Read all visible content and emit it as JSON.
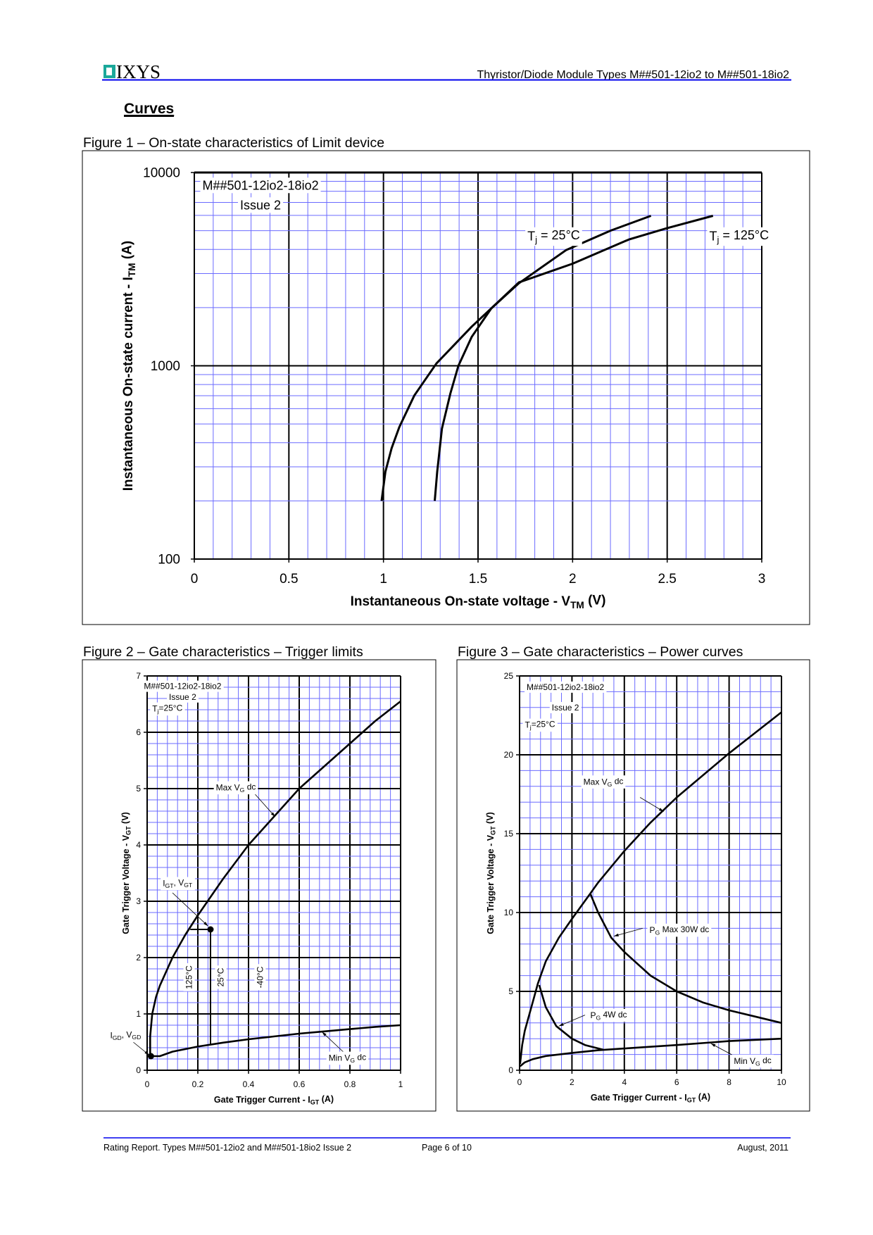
{
  "header": {
    "logo_text": "IXYS",
    "doc_title": "Thyristor/Diode Module Types M##501-12io2 to M##501-18io2"
  },
  "section_title": "Curves",
  "colors": {
    "rule": "#0000ee",
    "grid_minor": "#6b6bff",
    "grid_major": "#000000",
    "logo": "#1aa89a"
  },
  "chart_data": [
    {
      "type": "line",
      "title": "Figure 1 – On-state characteristics of Limit device",
      "xlabel": [
        {
          "t": "Instantaneous On-state voltage - V"
        },
        {
          "t": "TM",
          "sub": true
        },
        {
          "t": " (V)"
        }
      ],
      "ylabel": [
        {
          "t": "Instantaneous On-state current - I"
        },
        {
          "t": "TM",
          "sub": true
        },
        {
          "t": " (A)"
        }
      ],
      "xlim": [
        0,
        3
      ],
      "ylim": [
        100,
        10000
      ],
      "yscale": "log",
      "xticks": [
        "0",
        "0.5",
        "1",
        "1.5",
        "2",
        "2.5",
        "3"
      ],
      "yticks": [
        "100",
        "1000",
        "10000"
      ],
      "x_major": 0.5,
      "x_minor": 0.1,
      "grid": true,
      "annotations": [
        [
          {
            "t": "M##501-12io2-18io2"
          }
        ],
        [
          {
            "t": "Issue 2"
          }
        ],
        [
          {
            "t": "T"
          },
          {
            "t": "j",
            "sub": true
          },
          {
            "t": " = 25°C"
          }
        ],
        [
          {
            "t": "T"
          },
          {
            "t": "j",
            "sub": true
          },
          {
            "t": " = 125°C"
          }
        ]
      ],
      "series": [
        {
          "name": "Tj = 25°C",
          "x": [
            0.99,
            1.01,
            1.043,
            1.084,
            1.163,
            1.28,
            1.467,
            1.57,
            1.716,
            1.965,
            2.2,
            2.414
          ],
          "y": [
            200,
            283,
            374,
            482,
            702,
            1028,
            1596,
            1981,
            2673,
            3965,
            5000,
            5970
          ]
        },
        {
          "name": "Tj = 125°C",
          "x": [
            1.271,
            1.284,
            1.309,
            1.354,
            1.396,
            1.467,
            1.57,
            1.716,
            2.0,
            2.297,
            2.497,
            2.742
          ],
          "y": [
            200,
            283,
            473,
            721,
            1000,
            1413,
            1981,
            2700,
            3375,
            4500,
            5144,
            5970
          ]
        }
      ]
    },
    {
      "type": "line",
      "title": "Figure 2 – Gate characteristics – Trigger limits",
      "xlabel": [
        {
          "t": "Gate Trigger Current - I"
        },
        {
          "t": "GT",
          "sub": true
        },
        {
          "t": " (A)"
        }
      ],
      "ylabel": [
        {
          "t": "Gate Trigger Voltage - V"
        },
        {
          "t": "GT",
          "sub": true
        },
        {
          "t": " (V)"
        }
      ],
      "xlim": [
        0,
        1
      ],
      "ylim": [
        0,
        7
      ],
      "xticks": [
        "0",
        "0.2",
        "0.4",
        "0.6",
        "0.8",
        "1"
      ],
      "yticks": [
        "0",
        "1",
        "2",
        "3",
        "4",
        "5",
        "6",
        "7"
      ],
      "x_major": 0.2,
      "x_minor": 0.04,
      "y_major": 1,
      "y_minor": 0.2,
      "grid": true,
      "annotations": [
        [
          {
            "t": "M##501-12io2-18io2"
          }
        ],
        [
          {
            "t": "Issue 2"
          }
        ],
        [
          {
            "t": "T"
          },
          {
            "t": "j",
            "sub": true
          },
          {
            "t": "=25°C"
          }
        ],
        [
          {
            "t": "Max V"
          },
          {
            "t": "G",
            "sub": true
          },
          {
            "t": " dc"
          }
        ],
        [
          {
            "t": "I"
          },
          {
            "t": "GT",
            "sub": true
          },
          {
            "t": ", V"
          },
          {
            "t": "GT",
            "sub": true
          }
        ],
        [
          {
            "t": "I"
          },
          {
            "t": "GD",
            "sub": true
          },
          {
            "t": ", V"
          },
          {
            "t": "GD",
            "sub": true
          }
        ],
        [
          {
            "t": "Min V"
          },
          {
            "t": "G",
            "sub": true
          },
          {
            "t": " dc"
          }
        ],
        [
          {
            "t": "125°C"
          }
        ],
        [
          {
            "t": "25°C"
          }
        ],
        [
          {
            "t": "-40°C"
          }
        ]
      ],
      "series": [
        {
          "name": "Max VG dc",
          "x": [
            0.012,
            0.012,
            0.02,
            0.035,
            0.05,
            0.1,
            0.15,
            0.2,
            0.3,
            0.4,
            0.5,
            0.6,
            0.7,
            0.8,
            0.9,
            1.0
          ],
          "y": [
            0.25,
            0.6,
            1.0,
            1.3,
            1.5,
            2.0,
            2.4,
            2.75,
            3.4,
            4.0,
            4.5,
            5.0,
            5.4,
            5.8,
            6.2,
            6.55
          ]
        },
        {
          "name": "Min VG dc",
          "x": [
            0.012,
            0.05,
            0.1,
            0.2,
            0.3,
            0.4,
            0.5,
            0.6,
            0.7,
            0.8,
            0.9,
            1.0
          ],
          "y": [
            0.25,
            0.25,
            0.33,
            0.42,
            0.49,
            0.55,
            0.6,
            0.65,
            0.69,
            0.73,
            0.77,
            0.8
          ]
        },
        {
          "name": "IGT, VGT",
          "x": [
            0.17,
            0.25,
            0.25
          ],
          "y": [
            2.5,
            2.5,
            0.47
          ]
        }
      ],
      "points": [
        {
          "name": "IGT, VGT",
          "x": 0.25,
          "y": 2.5
        },
        {
          "name": "IGD, VGD",
          "x": 0.015,
          "y": 0.25
        }
      ]
    },
    {
      "type": "line",
      "title": "Figure 3 – Gate characteristics – Power curves",
      "xlabel": [
        {
          "t": "Gate Trigger Current - I"
        },
        {
          "t": "GT",
          "sub": true
        },
        {
          "t": " (A)"
        }
      ],
      "ylabel": [
        {
          "t": "Gate Trigger Voltage - V"
        },
        {
          "t": "GT",
          "sub": true
        },
        {
          "t": " (V)"
        }
      ],
      "xlim": [
        0,
        10
      ],
      "ylim": [
        0,
        25
      ],
      "xticks": [
        "0",
        "2",
        "4",
        "6",
        "8",
        "10"
      ],
      "yticks": [
        "0",
        "5",
        "10",
        "15",
        "20",
        "25"
      ],
      "x_major": 2,
      "x_minor": 0.4,
      "y_major": 5,
      "y_minor": 1,
      "grid": true,
      "annotations": [
        [
          {
            "t": "M##501-12io2-18io2"
          }
        ],
        [
          {
            "t": "Issue 2"
          }
        ],
        [
          {
            "t": "T"
          },
          {
            "t": "j",
            "sub": true
          },
          {
            "t": "=25°C"
          }
        ],
        [
          {
            "t": "Max V"
          },
          {
            "t": "G",
            "sub": true
          },
          {
            "t": " dc"
          }
        ],
        [
          {
            "t": "P"
          },
          {
            "t": "G",
            "sub": true
          },
          {
            "t": " Max 30W dc"
          }
        ],
        [
          {
            "t": "P"
          },
          {
            "t": "G",
            "sub": true
          },
          {
            "t": " 4W dc"
          }
        ],
        [
          {
            "t": "Min V"
          },
          {
            "t": "G",
            "sub": true
          },
          {
            "t": " dc"
          }
        ]
      ],
      "series": [
        {
          "name": "Max VG dc",
          "x": [
            0.02,
            0.1,
            0.2,
            0.5,
            0.7,
            1,
            1.5,
            2,
            2.7,
            3,
            4,
            5,
            6,
            7,
            8,
            9,
            10
          ],
          "y": [
            0.4,
            1.6,
            2.5,
            4.3,
            5.5,
            6.9,
            8.4,
            9.6,
            11.2,
            11.9,
            13.9,
            15.7,
            17.3,
            18.7,
            20.1,
            21.4,
            22.7
          ]
        },
        {
          "name": "PG Max 30W dc",
          "x": [
            2.7,
            3,
            3.5,
            4,
            5,
            6,
            7,
            8,
            9,
            10
          ],
          "y": [
            11.2,
            10,
            8.4,
            7.5,
            6,
            5,
            4.3,
            3.8,
            3.4,
            3.0
          ]
        },
        {
          "name": "PG 4W dc",
          "x": [
            0.75,
            1,
            1.4,
            2,
            2.5,
            3.2
          ],
          "y": [
            5.4,
            4,
            2.8,
            2.0,
            1.6,
            1.3
          ]
        },
        {
          "name": "Min VG dc",
          "x": [
            0.02,
            0.2,
            0.5,
            1,
            2,
            3,
            4,
            6,
            8,
            10
          ],
          "y": [
            0.25,
            0.5,
            0.7,
            0.9,
            1.1,
            1.27,
            1.38,
            1.6,
            1.85,
            2.0
          ]
        }
      ]
    }
  ],
  "footer": {
    "left": "Rating Report. Types M##501-12io2 and M##501-18io2 Issue 2",
    "center": "Page 6 of 10",
    "right": "August, 2011"
  }
}
